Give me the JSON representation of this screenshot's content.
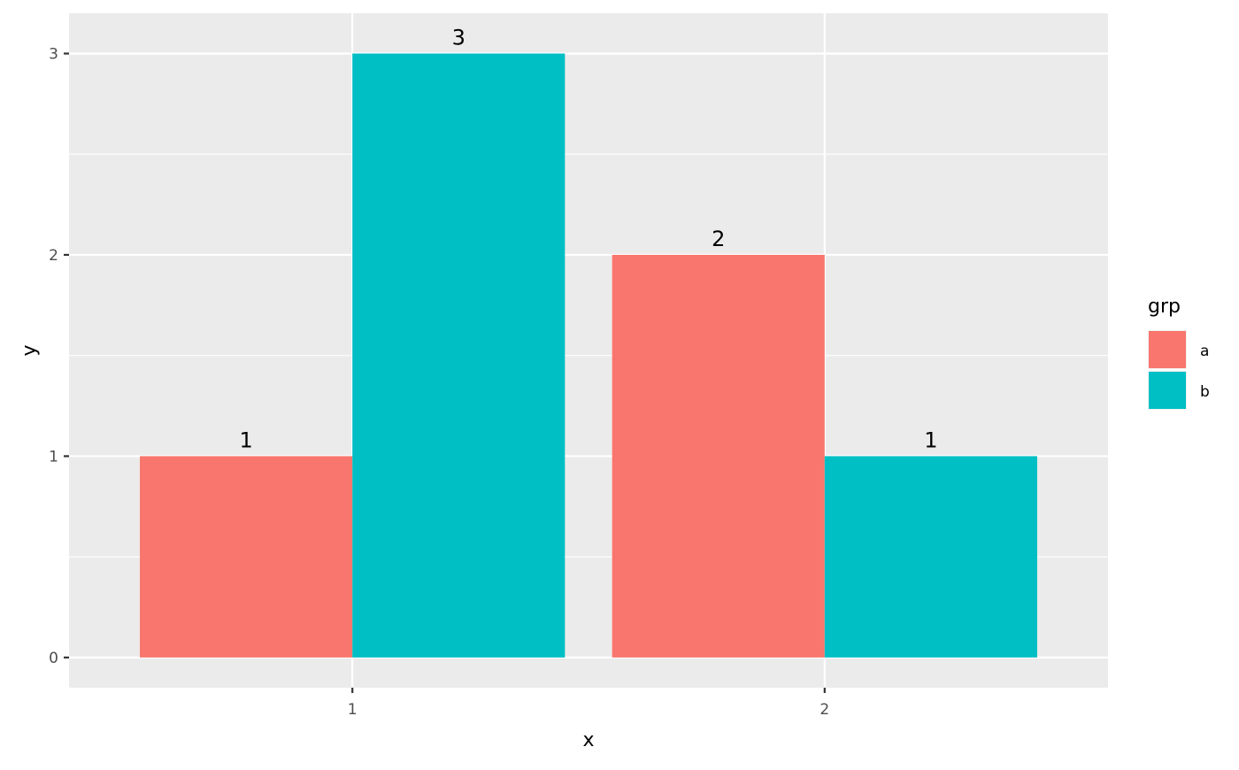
{
  "chart_data": {
    "type": "bar",
    "title": "",
    "xlabel": "x",
    "ylabel": "y",
    "categories": [
      "1",
      "2"
    ],
    "series": [
      {
        "name": "a",
        "values": [
          1,
          2
        ],
        "color": "#F8766D"
      },
      {
        "name": "b",
        "values": [
          3,
          1
        ],
        "color": "#00BFC4"
      }
    ],
    "data_labels": [
      [
        "1",
        "2"
      ],
      [
        "3",
        "1"
      ]
    ],
    "yticks": [
      0,
      1,
      2,
      3
    ],
    "ylim": [
      -0.15,
      3.2
    ],
    "xlim": [
      0.4,
      2.6
    ],
    "grid": true,
    "panel_background": "#EBEBEB",
    "legend": {
      "title": "grp",
      "placement": "right",
      "entries": [
        "a",
        "b"
      ]
    }
  }
}
